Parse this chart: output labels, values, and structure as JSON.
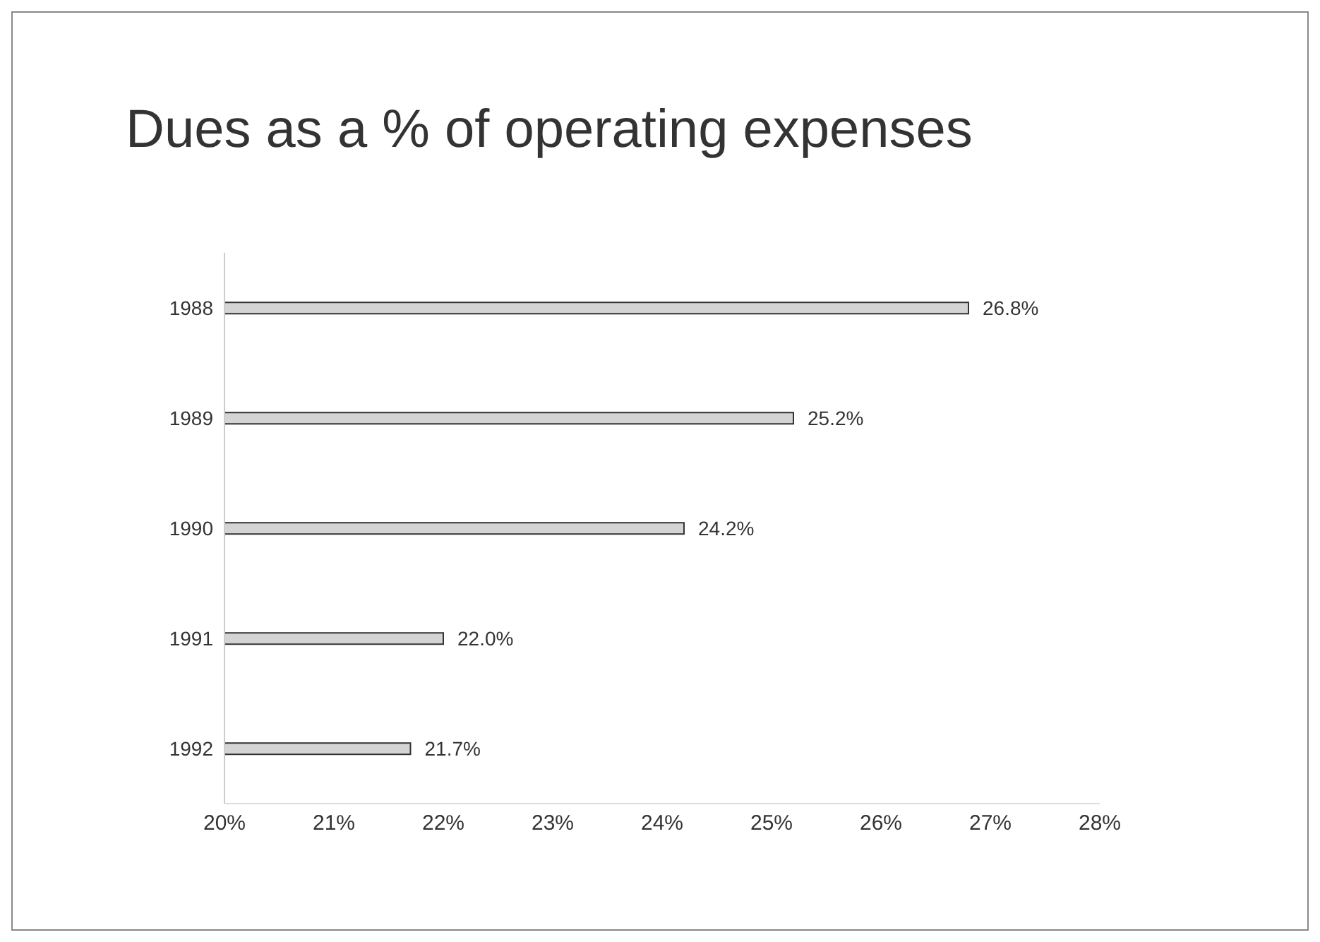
{
  "chart_data": {
    "type": "bar",
    "title": "Dues as a % of operating expenses",
    "orientation": "horizontal",
    "categories": [
      "1988",
      "1989",
      "1990",
      "1991",
      "1992"
    ],
    "values": [
      26.8,
      25.2,
      24.2,
      22.0,
      21.7
    ],
    "value_labels": [
      "26.8%",
      "25.2%",
      "24.2%",
      "22.0%",
      "21.7%"
    ],
    "color": "#d4d4d4",
    "xlim": [
      20,
      28
    ],
    "xticks": [
      {
        "value": 20,
        "label": "20%"
      },
      {
        "value": 21,
        "label": "21%"
      },
      {
        "value": 22,
        "label": "22%"
      },
      {
        "value": 23,
        "label": "23%"
      },
      {
        "value": 24,
        "label": "24%"
      },
      {
        "value": 25,
        "label": "25%"
      },
      {
        "value": 26,
        "label": "26%"
      },
      {
        "value": 27,
        "label": "27%"
      },
      {
        "value": 28,
        "label": "28%"
      }
    ],
    "grid": false,
    "legend": false
  }
}
